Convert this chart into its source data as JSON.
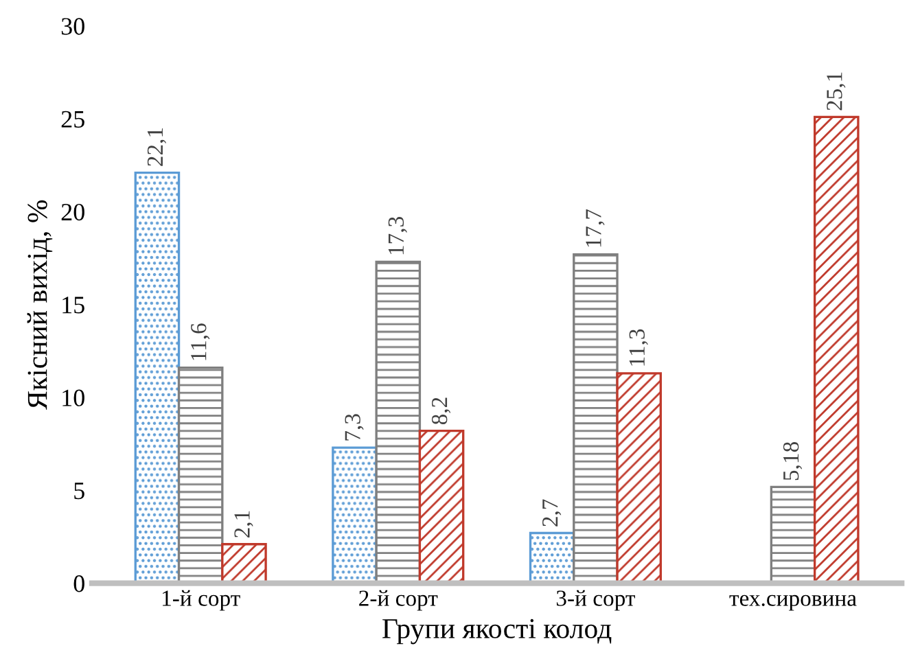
{
  "chart_data": {
    "type": "bar",
    "categories": [
      "1-й сорт",
      "2-й сорт",
      "3-й сорт",
      "тех.сировина"
    ],
    "series": [
      {
        "color": "#5b9bd5",
        "values": [
          22.1,
          7.3,
          2.7,
          null
        ],
        "value_labels": [
          "22,1",
          "7,3",
          "2,7",
          null
        ]
      },
      {
        "color": "#7f7f7f",
        "values": [
          11.6,
          17.3,
          17.7,
          5.18
        ],
        "value_labels": [
          "11,6",
          "17,3",
          "17,7",
          "5,18"
        ]
      },
      {
        "color": "#c0392b",
        "values": [
          2.1,
          8.2,
          11.3,
          25.1
        ],
        "value_labels": [
          "2,1",
          "8,2",
          "11,3",
          "25,1"
        ]
      }
    ],
    "xlabel": "Групи якості колод",
    "ylabel": "Якісний вихід, %",
    "ylim": [
      0,
      30
    ],
    "yticks": [
      0,
      5,
      10,
      15,
      20,
      25,
      30
    ],
    "grid": false,
    "legend": false
  }
}
